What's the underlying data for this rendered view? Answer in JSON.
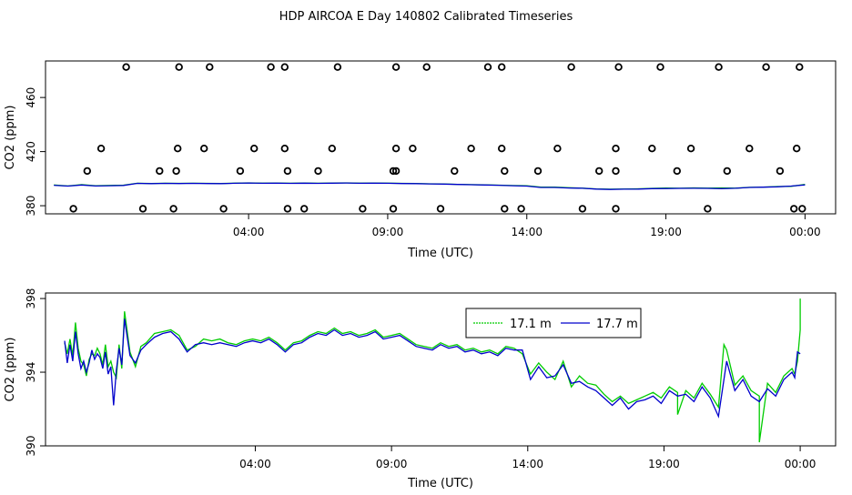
{
  "title": "HDP AIRCOA E  Day 140802  Calibrated Timeseries",
  "colors": {
    "series_a": "#00cc00",
    "series_b": "#0000cc",
    "axis": "#000000"
  },
  "chart_data": [
    {
      "type": "line",
      "xlabel": "Time (UTC)",
      "ylabel": "CO2 (ppm)",
      "xlim": [
        -3.3,
        25.1
      ],
      "ylim": [
        374,
        487
      ],
      "x_ticks": [
        4,
        9,
        14,
        19,
        24
      ],
      "x_tick_labels": [
        "04:00",
        "09:00",
        "14:00",
        "19:00",
        "00:00"
      ],
      "y_ticks": [
        380,
        420,
        460
      ],
      "markers": {
        "style": "open-circle",
        "points": [
          [
            -2.3,
            377.8
          ],
          [
            -1.8,
            405.7
          ],
          [
            -1.3,
            422.3
          ],
          [
            -0.4,
            482.5
          ],
          [
            0.2,
            377.8
          ],
          [
            0.8,
            405.7
          ],
          [
            1.3,
            377.8
          ],
          [
            1.4,
            405.7
          ],
          [
            1.45,
            422.3
          ],
          [
            1.5,
            482.5
          ],
          [
            2.4,
            422.3
          ],
          [
            2.6,
            482.5
          ],
          [
            3.1,
            377.8
          ],
          [
            3.7,
            405.7
          ],
          [
            4.2,
            422.3
          ],
          [
            4.8,
            482.5
          ],
          [
            5.3,
            422.3
          ],
          [
            5.3,
            482.5
          ],
          [
            5.4,
            405.7
          ],
          [
            5.4,
            377.8
          ],
          [
            6.0,
            377.8
          ],
          [
            6.5,
            405.7
          ],
          [
            7.0,
            422.3
          ],
          [
            7.2,
            482.5
          ],
          [
            8.1,
            377.8
          ],
          [
            9.2,
            405.7
          ],
          [
            9.2,
            377.8
          ],
          [
            9.3,
            405.7
          ],
          [
            9.3,
            422.3
          ],
          [
            9.3,
            482.5
          ],
          [
            9.9,
            422.3
          ],
          [
            10.4,
            482.5
          ],
          [
            10.9,
            377.8
          ],
          [
            11.4,
            405.7
          ],
          [
            12.0,
            422.3
          ],
          [
            12.6,
            482.5
          ],
          [
            13.1,
            482.5
          ],
          [
            13.1,
            422.3
          ],
          [
            13.2,
            405.7
          ],
          [
            13.2,
            377.8
          ],
          [
            13.8,
            377.8
          ],
          [
            14.4,
            405.7
          ],
          [
            15.1,
            422.3
          ],
          [
            15.6,
            482.5
          ],
          [
            16.0,
            377.8
          ],
          [
            16.6,
            405.7
          ],
          [
            17.2,
            377.8
          ],
          [
            17.2,
            405.7
          ],
          [
            17.2,
            422.3
          ],
          [
            17.3,
            482.5
          ],
          [
            18.5,
            422.3
          ],
          [
            18.8,
            482.5
          ],
          [
            19.4,
            405.7
          ],
          [
            19.9,
            422.3
          ],
          [
            20.5,
            377.8
          ],
          [
            20.9,
            482.5
          ],
          [
            21.2,
            405.7
          ],
          [
            22.0,
            422.3
          ],
          [
            22.6,
            482.5
          ],
          [
            23.1,
            405.7
          ],
          [
            23.6,
            377.8
          ],
          [
            23.7,
            422.3
          ],
          [
            23.8,
            482.5
          ],
          [
            23.9,
            377.8
          ]
        ]
      },
      "series": [
        {
          "name": "17.1 m",
          "x": [
            -3.0,
            -2.5,
            -2.0,
            -1.5,
            -1.0,
            -0.5,
            0.0,
            0.5,
            1.0,
            1.5,
            2.0,
            2.5,
            3.0,
            3.5,
            4.0,
            4.5,
            5.0,
            5.5,
            6.0,
            6.5,
            7.0,
            7.5,
            8.0,
            8.5,
            9.0,
            9.5,
            10.0,
            10.5,
            11.0,
            11.5,
            12.0,
            12.5,
            13.0,
            13.5,
            14.0,
            14.5,
            15.0,
            15.5,
            16.0,
            16.5,
            17.0,
            17.5,
            18.0,
            18.5,
            19.0,
            19.5,
            20.0,
            20.5,
            21.0,
            21.5,
            22.0,
            22.5,
            23.0,
            23.5,
            24.0
          ],
          "y": [
            395.3,
            394.6,
            395.6,
            394.8,
            395.0,
            395.2,
            396.6,
            396.4,
            396.6,
            396.5,
            396.6,
            396.5,
            396.4,
            396.7,
            396.9,
            396.7,
            396.8,
            396.6,
            396.8,
            396.6,
            396.8,
            396.9,
            396.7,
            396.8,
            396.7,
            396.5,
            396.4,
            396.2,
            396.1,
            395.8,
            395.6,
            395.4,
            395.2,
            394.9,
            394.8,
            393.7,
            393.8,
            393.3,
            393.0,
            392.4,
            392.2,
            392.3,
            392.5,
            392.8,
            393.1,
            392.9,
            393.2,
            393.0,
            393.2,
            393.0,
            393.6,
            393.8,
            394.2,
            394.3,
            395.8
          ]
        },
        {
          "name": "17.7 m",
          "x": [
            -3.0,
            -2.5,
            -2.0,
            -1.5,
            -1.0,
            -0.5,
            0.0,
            0.5,
            1.0,
            1.5,
            2.0,
            2.5,
            3.0,
            3.5,
            4.0,
            4.5,
            5.0,
            5.5,
            6.0,
            6.5,
            7.0,
            7.5,
            8.0,
            8.5,
            9.0,
            9.5,
            10.0,
            10.5,
            11.0,
            11.5,
            12.0,
            12.5,
            13.0,
            13.5,
            14.0,
            14.5,
            15.0,
            15.5,
            16.0,
            16.5,
            17.0,
            17.5,
            18.0,
            18.5,
            19.0,
            19.5,
            20.0,
            20.5,
            21.0,
            21.5,
            22.0,
            22.5,
            23.0,
            23.5,
            24.0
          ],
          "y": [
            395.1,
            394.5,
            395.3,
            394.6,
            394.8,
            395.0,
            396.5,
            396.3,
            396.5,
            396.4,
            396.5,
            396.4,
            396.3,
            396.6,
            396.8,
            396.6,
            396.7,
            396.5,
            396.7,
            396.5,
            396.7,
            396.8,
            396.6,
            396.7,
            396.6,
            396.4,
            396.3,
            396.1,
            396.0,
            395.7,
            395.5,
            395.3,
            395.1,
            394.8,
            394.5,
            393.5,
            393.5,
            393.1,
            392.9,
            392.3,
            392.0,
            392.2,
            392.3,
            392.6,
            392.7,
            392.8,
            392.9,
            392.8,
            392.6,
            392.9,
            393.5,
            393.7,
            394.0,
            394.5,
            395.4
          ]
        }
      ]
    },
    {
      "type": "line",
      "xlabel": "Time (UTC)",
      "ylabel": "CO2 (ppm)",
      "xlim": [
        -3.7,
        25.3
      ],
      "ylim": [
        390,
        398.3
      ],
      "x_ticks": [
        4,
        9,
        14,
        19,
        24
      ],
      "x_tick_labels": [
        "04:00",
        "09:00",
        "14:00",
        "19:00",
        "00:00"
      ],
      "y_ticks": [
        390,
        394,
        398
      ],
      "legend": "top-center",
      "series": [
        {
          "name": "17.1 m",
          "x": [
            -3.0,
            -2.9,
            -2.8,
            -2.7,
            -2.6,
            -2.5,
            -2.4,
            -2.3,
            -2.2,
            -2.1,
            -2.0,
            -1.9,
            -1.8,
            -1.7,
            -1.6,
            -1.5,
            -1.4,
            -1.3,
            -1.2,
            -1.1,
            -1.0,
            -0.9,
            -0.8,
            -0.6,
            -0.4,
            -0.2,
            0.0,
            0.3,
            0.6,
            0.9,
            1.2,
            1.5,
            1.8,
            2.1,
            2.4,
            2.7,
            3.0,
            3.3,
            3.6,
            3.9,
            4.2,
            4.5,
            4.8,
            5.1,
            5.4,
            5.7,
            6.0,
            6.3,
            6.6,
            6.9,
            7.2,
            7.5,
            7.8,
            8.1,
            8.4,
            8.7,
            9.0,
            9.3,
            9.6,
            9.9,
            10.2,
            10.5,
            10.8,
            11.1,
            11.4,
            11.7,
            12.0,
            12.3,
            12.6,
            12.9,
            13.2,
            13.5,
            13.8,
            14.1,
            14.4,
            14.7,
            15.0,
            15.3,
            15.6,
            15.9,
            16.2,
            16.5,
            16.8,
            17.1,
            17.4,
            17.7,
            18.0,
            18.3,
            18.6,
            18.9,
            19.2,
            19.5,
            19.8,
            20.1,
            20.4,
            20.7,
            21.0,
            21.3,
            21.6,
            21.9,
            22.2,
            22.5,
            22.8,
            23.1,
            23.4,
            23.7,
            23.8,
            23.9,
            24.0
          ],
          "y": [
            395.6,
            395.0,
            395.8,
            394.9,
            396.7,
            395.3,
            394.6,
            394.4,
            393.8,
            394.7,
            395.0,
            394.9,
            395.3,
            395.0,
            394.4,
            395.5,
            394.3,
            394.6,
            394.0,
            393.7,
            395.5,
            394.2,
            397.3,
            395.1,
            394.3,
            395.4,
            395.6,
            396.1,
            396.2,
            396.3,
            396.0,
            395.2,
            395.4,
            395.8,
            395.7,
            395.8,
            395.6,
            395.5,
            395.7,
            395.8,
            395.7,
            395.9,
            395.6,
            395.2,
            395.6,
            395.7,
            396.0,
            396.2,
            396.1,
            396.4,
            396.1,
            396.2,
            396.0,
            396.1,
            396.3,
            395.9,
            396.0,
            396.1,
            395.8,
            395.5,
            395.4,
            395.3,
            395.6,
            395.4,
            395.5,
            395.2,
            395.3,
            395.1,
            395.2,
            395.0,
            395.4,
            395.3,
            395.0,
            393.9,
            394.5,
            394.0,
            393.6,
            394.6,
            393.2,
            393.8,
            393.4,
            393.3,
            392.8,
            392.4,
            392.7,
            392.3,
            392.5,
            392.7,
            392.9,
            392.6,
            393.2,
            392.9,
            393.0,
            392.6,
            393.4,
            392.8,
            392.1,
            395.2,
            393.3,
            393.8,
            393.0,
            392.7,
            393.4,
            392.9,
            393.8,
            394.2,
            393.9,
            394.6,
            396.3
          ],
          "extra": [
            [
              19.5,
              391.7
            ],
            [
              21.2,
              395.5
            ],
            [
              22.5,
              390.2
            ],
            [
              24.0,
              398.0
            ]
          ]
        },
        {
          "name": "17.7 m",
          "x": [
            -3.0,
            -2.9,
            -2.8,
            -2.7,
            -2.6,
            -2.5,
            -2.4,
            -2.3,
            -2.2,
            -2.1,
            -2.0,
            -1.9,
            -1.8,
            -1.7,
            -1.6,
            -1.5,
            -1.4,
            -1.3,
            -1.2,
            -1.1,
            -1.0,
            -0.9,
            -0.8,
            -0.6,
            -0.4,
            -0.2,
            0.0,
            0.3,
            0.6,
            0.9,
            1.2,
            1.5,
            1.8,
            2.1,
            2.4,
            2.7,
            3.0,
            3.3,
            3.6,
            3.9,
            4.2,
            4.5,
            4.8,
            5.1,
            5.4,
            5.7,
            6.0,
            6.3,
            6.6,
            6.9,
            7.2,
            7.5,
            7.8,
            8.1,
            8.4,
            8.7,
            9.0,
            9.3,
            9.6,
            9.9,
            10.2,
            10.5,
            10.8,
            11.1,
            11.4,
            11.7,
            12.0,
            12.3,
            12.6,
            12.9,
            13.2,
            13.5,
            13.8,
            14.1,
            14.4,
            14.7,
            15.0,
            15.3,
            15.6,
            15.9,
            16.2,
            16.5,
            16.8,
            17.1,
            17.4,
            17.7,
            18.0,
            18.3,
            18.6,
            18.9,
            19.2,
            19.5,
            19.8,
            20.1,
            20.4,
            20.7,
            21.0,
            21.3,
            21.6,
            21.9,
            22.2,
            22.5,
            22.8,
            23.1,
            23.4,
            23.7,
            23.8,
            23.9,
            24.0
          ],
          "y": [
            395.7,
            394.5,
            395.5,
            394.6,
            396.2,
            395.0,
            394.2,
            394.6,
            394.0,
            394.5,
            395.2,
            394.7,
            395.0,
            394.8,
            394.2,
            395.1,
            393.9,
            394.3,
            392.2,
            394.1,
            395.3,
            394.4,
            396.9,
            394.9,
            394.5,
            395.2,
            395.5,
            395.9,
            396.1,
            396.2,
            395.8,
            395.1,
            395.5,
            395.6,
            395.5,
            395.6,
            395.5,
            395.4,
            395.6,
            395.7,
            395.6,
            395.8,
            395.5,
            395.1,
            395.5,
            395.6,
            395.9,
            396.1,
            396.0,
            396.3,
            396.0,
            396.1,
            395.9,
            396.0,
            396.2,
            395.8,
            395.9,
            396.0,
            395.7,
            395.4,
            395.3,
            395.2,
            395.5,
            395.3,
            395.4,
            395.1,
            395.2,
            395.0,
            395.1,
            394.9,
            395.3,
            395.2,
            395.2,
            393.6,
            394.3,
            393.7,
            393.8,
            394.4,
            393.4,
            393.5,
            393.2,
            393.0,
            392.6,
            392.2,
            392.6,
            392.0,
            392.4,
            392.5,
            392.7,
            392.3,
            393.0,
            392.7,
            392.8,
            392.4,
            393.2,
            392.6,
            391.6,
            394.6,
            393.0,
            393.6,
            392.7,
            392.4,
            393.1,
            392.7,
            393.6,
            394.0,
            393.7,
            395.1,
            395.0
          ]
        }
      ]
    }
  ]
}
